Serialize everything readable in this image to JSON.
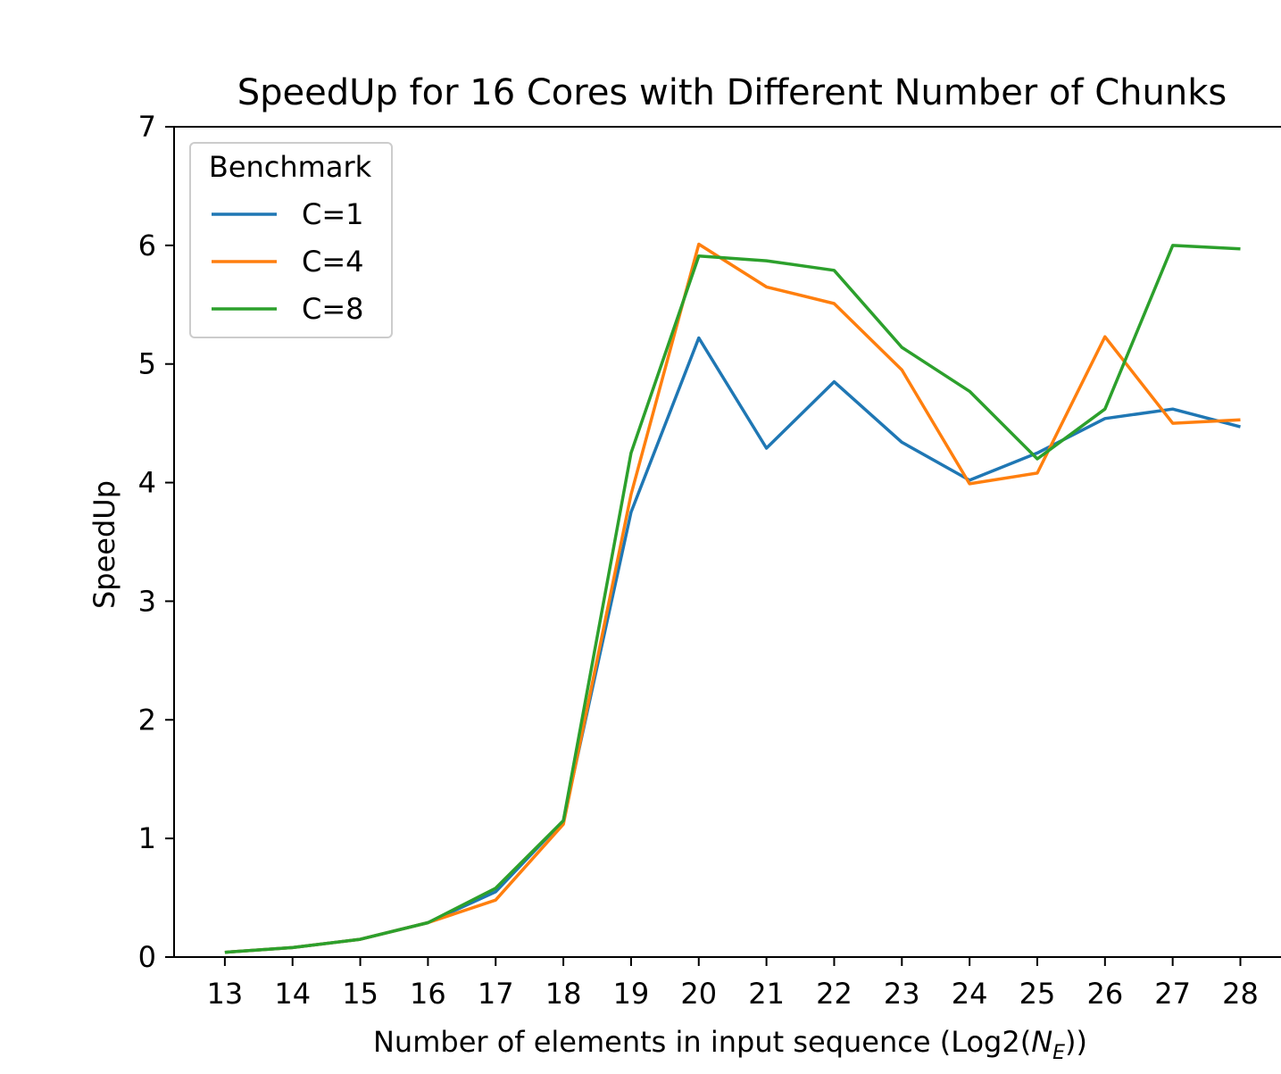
{
  "chart_data": {
    "type": "line",
    "title": "SpeedUp for 16 Cores with Different Number of Chunks",
    "xlabel_prefix": "Number of elements in input sequence (Log2(",
    "xlabel_var": "N",
    "xlabel_sub": "E",
    "xlabel_suffix": "))",
    "ylabel": "SpeedUp",
    "x": [
      13,
      14,
      15,
      16,
      17,
      18,
      19,
      20,
      21,
      22,
      23,
      24,
      25,
      26,
      27,
      28
    ],
    "xticks": [
      "13",
      "14",
      "15",
      "16",
      "17",
      "18",
      "19",
      "20",
      "21",
      "22",
      "23",
      "24",
      "25",
      "26",
      "27",
      "28"
    ],
    "yticks": [
      "0",
      "1",
      "2",
      "3",
      "4",
      "5",
      "6",
      "7"
    ],
    "ylim": [
      0,
      7
    ],
    "xlim": [
      12.25,
      28.6
    ],
    "legend": {
      "title": "Benchmark",
      "placement": "top-left"
    },
    "series": [
      {
        "name": "C=1",
        "color": "#1f77b4",
        "values": [
          0.04,
          0.08,
          0.15,
          0.29,
          0.55,
          1.15,
          3.75,
          5.22,
          4.29,
          4.85,
          4.34,
          4.02,
          4.25,
          4.54,
          4.62,
          4.47
        ]
      },
      {
        "name": "C=4",
        "color": "#ff7f0e",
        "values": [
          0.04,
          0.08,
          0.15,
          0.29,
          0.48,
          1.12,
          3.9,
          6.01,
          5.65,
          5.51,
          4.95,
          3.99,
          4.08,
          5.23,
          4.5,
          4.53
        ]
      },
      {
        "name": "C=8",
        "color": "#2ca02c",
        "values": [
          0.04,
          0.08,
          0.15,
          0.29,
          0.58,
          1.15,
          4.25,
          5.91,
          5.87,
          5.79,
          5.14,
          4.77,
          4.2,
          4.62,
          6.0,
          5.97
        ]
      }
    ]
  }
}
